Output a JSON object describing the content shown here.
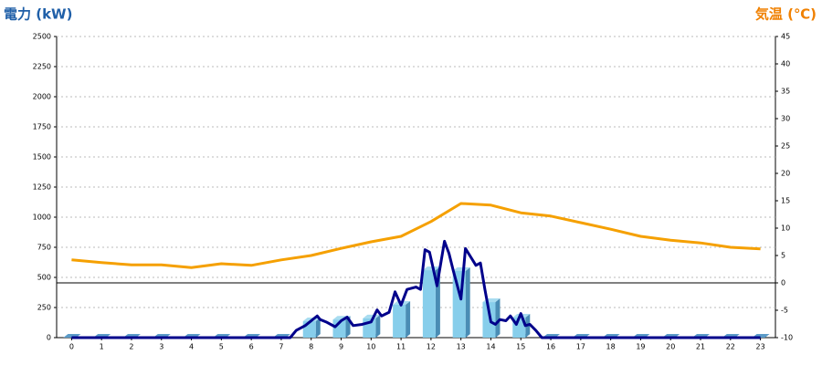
{
  "chart_data": {
    "type": "bar",
    "y_label": "電力 (kW)",
    "y2_label": "気温 (℃)",
    "categories": [
      "0",
      "1",
      "2",
      "3",
      "4",
      "5",
      "6",
      "7",
      "8",
      "9",
      "10",
      "11",
      "12",
      "13",
      "14",
      "15",
      "16",
      "17",
      "18",
      "19",
      "20",
      "21",
      "22",
      "23"
    ],
    "series": [
      {
        "type": "bar",
        "color": "#87ceeb",
        "values": [
          0,
          0,
          0,
          0,
          0,
          0,
          0,
          0,
          136,
          150,
          160,
          273,
          560,
          553,
          295,
          167,
          0,
          0,
          0,
          0,
          0,
          0,
          0,
          0
        ]
      },
      {
        "type": "line",
        "color": "#00008b",
        "x": [
          0,
          7.3,
          7.5,
          7.8,
          8.2,
          8.3,
          8.5,
          8.8,
          9.0,
          9.2,
          9.4,
          9.7,
          10.0,
          10.2,
          10.35,
          10.6,
          10.8,
          11.0,
          11.2,
          11.5,
          11.65,
          11.8,
          11.95,
          12.05,
          12.2,
          12.45,
          12.6,
          12.75,
          13.0,
          13.15,
          13.35,
          13.5,
          13.65,
          13.8,
          14.0,
          14.15,
          14.3,
          14.5,
          14.65,
          14.85,
          15.0,
          15.15,
          15.3,
          15.5,
          15.7,
          23
        ],
        "values": [
          0,
          0,
          60,
          100,
          180,
          150,
          130,
          90,
          140,
          170,
          100,
          110,
          130,
          230,
          180,
          210,
          380,
          270,
          400,
          420,
          400,
          730,
          710,
          600,
          430,
          800,
          700,
          550,
          320,
          740,
          660,
          600,
          620,
          400,
          130,
          110,
          150,
          140,
          180,
          110,
          200,
          100,
          110,
          60,
          0,
          0
        ]
      },
      {
        "type": "line",
        "axis": "y2",
        "color": "#f5a000",
        "values": [
          4.2,
          3.7,
          3.3,
          3.3,
          2.8,
          3.5,
          3.2,
          4.2,
          5.0,
          6.3,
          7.5,
          8.5,
          11.2,
          14.5,
          14.2,
          12.8,
          12.2,
          11,
          9.8,
          8.5,
          7.8,
          7.3,
          6.5,
          6.2
        ]
      }
    ],
    "ylim": [
      0,
      2500
    ],
    "yticks": [
      0,
      250,
      500,
      750,
      1000,
      1250,
      1500,
      1750,
      2000,
      2250,
      2500
    ],
    "y2lim": [
      -10,
      45
    ],
    "y2ticks": [
      -10,
      -5,
      0,
      5,
      10,
      15,
      20,
      25,
      30,
      35,
      40,
      45
    ],
    "grid": true
  }
}
